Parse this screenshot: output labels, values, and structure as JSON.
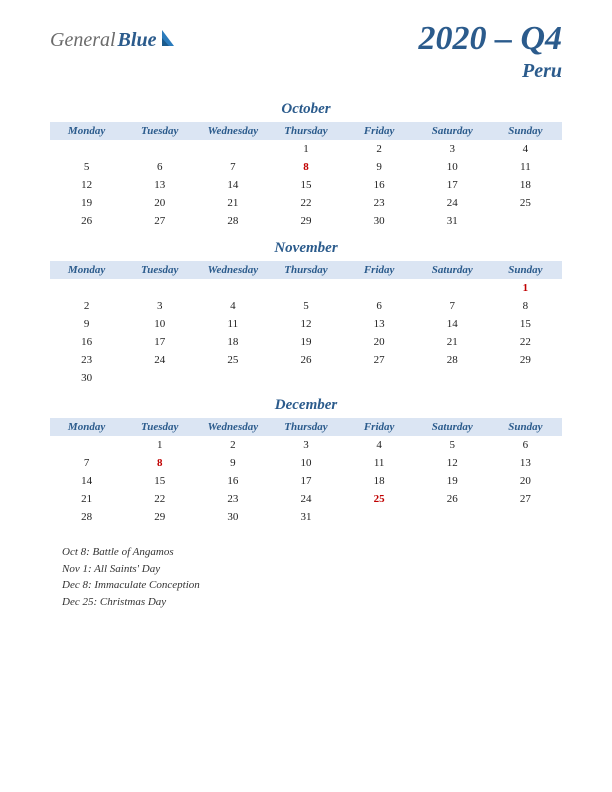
{
  "logo": {
    "text1": "General",
    "text2": "Blue"
  },
  "title": "2020 – Q4",
  "country": "Peru",
  "colors": {
    "brand": "#2b5b8c",
    "header_bg": "#dbe5f3",
    "holiday": "#c00000",
    "text": "#222222",
    "logo_gray": "#6b6b6b"
  },
  "day_headers": [
    "Monday",
    "Tuesday",
    "Wednesday",
    "Thursday",
    "Friday",
    "Saturday",
    "Sunday"
  ],
  "months": [
    {
      "name": "October",
      "weeks": [
        [
          "",
          "",
          "",
          "1",
          "2",
          "3",
          "4"
        ],
        [
          "5",
          "6",
          "7",
          "8",
          "9",
          "10",
          "11"
        ],
        [
          "12",
          "13",
          "14",
          "15",
          "16",
          "17",
          "18"
        ],
        [
          "19",
          "20",
          "21",
          "22",
          "23",
          "24",
          "25"
        ],
        [
          "26",
          "27",
          "28",
          "29",
          "30",
          "31",
          ""
        ]
      ],
      "holiday_days": [
        "8"
      ]
    },
    {
      "name": "November",
      "weeks": [
        [
          "",
          "",
          "",
          "",
          "",
          "",
          "1"
        ],
        [
          "2",
          "3",
          "4",
          "5",
          "6",
          "7",
          "8"
        ],
        [
          "9",
          "10",
          "11",
          "12",
          "13",
          "14",
          "15"
        ],
        [
          "16",
          "17",
          "18",
          "19",
          "20",
          "21",
          "22"
        ],
        [
          "23",
          "24",
          "25",
          "26",
          "27",
          "28",
          "29"
        ],
        [
          "30",
          "",
          "",
          "",
          "",
          "",
          ""
        ]
      ],
      "holiday_days": [
        "1"
      ]
    },
    {
      "name": "December",
      "weeks": [
        [
          "",
          "1",
          "2",
          "3",
          "4",
          "5",
          "6"
        ],
        [
          "7",
          "8",
          "9",
          "10",
          "11",
          "12",
          "13"
        ],
        [
          "14",
          "15",
          "16",
          "17",
          "18",
          "19",
          "20"
        ],
        [
          "21",
          "22",
          "23",
          "24",
          "25",
          "26",
          "27"
        ],
        [
          "28",
          "29",
          "30",
          "31",
          "",
          "",
          ""
        ]
      ],
      "holiday_days": [
        "8",
        "25"
      ]
    }
  ],
  "holidays": [
    "Oct 8: Battle of Angamos",
    "Nov 1: All Saints' Day",
    "Dec 8: Immaculate Conception",
    "Dec 25: Christmas Day"
  ]
}
